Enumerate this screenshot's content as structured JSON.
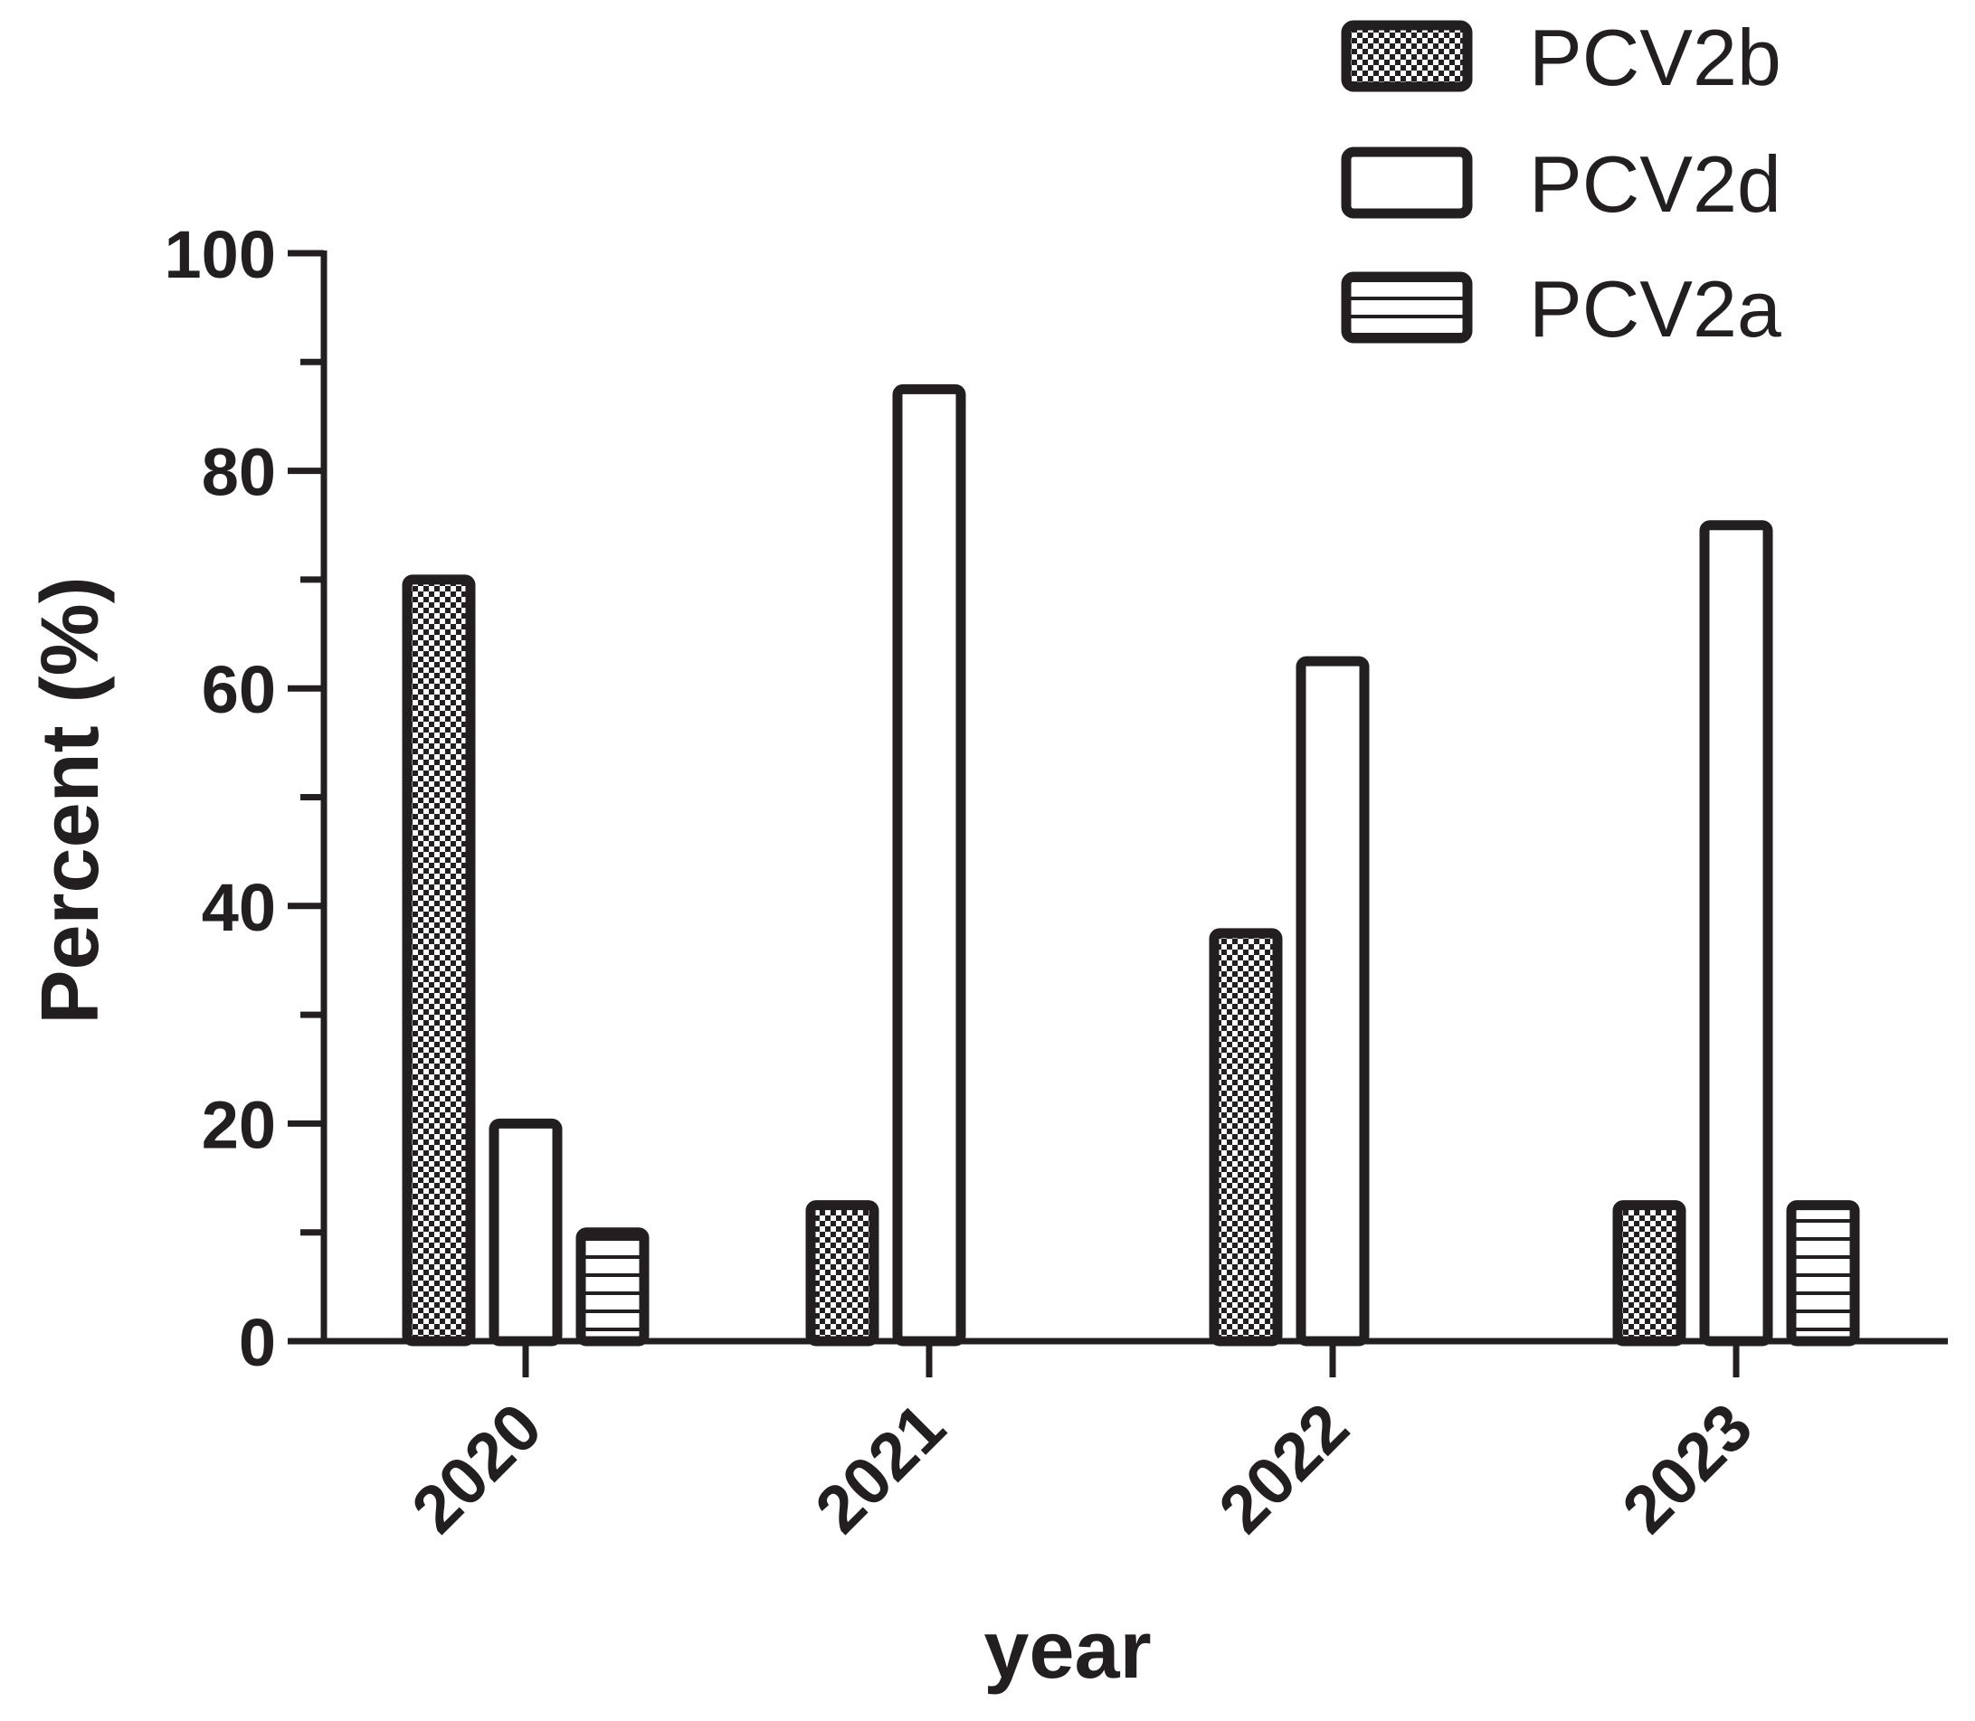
{
  "chart_data": {
    "type": "bar",
    "title": "",
    "xlabel": "year",
    "ylabel": "Percent (%)",
    "categories": [
      "2020",
      "2021",
      "2022",
      "2023"
    ],
    "ylim": [
      0,
      100
    ],
    "yticks": [
      "0",
      "20",
      "40",
      "60",
      "80",
      "100"
    ],
    "grid": false,
    "legend_position": "top-right",
    "series": [
      {
        "name": "PCV2b",
        "pattern": "checker",
        "values": [
          70,
          12.5,
          37.5,
          12.5
        ]
      },
      {
        "name": "PCV2d",
        "pattern": "none",
        "values": [
          20,
          87.5,
          62.5,
          75
        ]
      },
      {
        "name": "PCV2a",
        "pattern": "horizontal-lines",
        "values": [
          10,
          0,
          0,
          12.5
        ]
      }
    ],
    "colors": {
      "stroke": "#231f20",
      "fill": "#ffffff"
    }
  }
}
